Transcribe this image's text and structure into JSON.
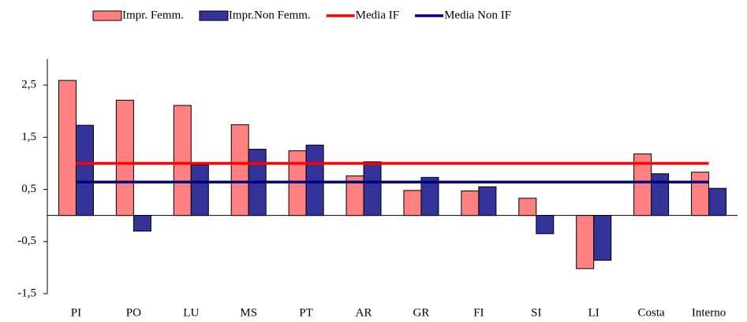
{
  "chart_data": {
    "type": "bar",
    "categories": [
      "PI",
      "PO",
      "LU",
      "MS",
      "PT",
      "AR",
      "GR",
      "FI",
      "SI",
      "LI",
      "Costa",
      "Interno"
    ],
    "series": [
      {
        "name": "Impr. Femm.",
        "color": "#ff8080",
        "values": [
          2.59,
          2.21,
          2.11,
          1.74,
          1.24,
          0.76,
          0.48,
          0.47,
          0.33,
          -1.02,
          1.18,
          0.83
        ]
      },
      {
        "name": "Impr.Non Femm.",
        "color": "#333399",
        "values": [
          1.73,
          -0.3,
          0.97,
          1.27,
          1.35,
          1.03,
          0.73,
          0.55,
          -0.35,
          -0.86,
          0.8,
          0.52
        ]
      }
    ],
    "reference_lines": [
      {
        "name": "Media IF",
        "color": "#ff0000",
        "value": 1.0
      },
      {
        "name": "Media Non IF",
        "color": "#000080",
        "value": 0.64
      }
    ],
    "ylim": [
      -1.5,
      3
    ],
    "yticks": [
      {
        "value": 2.5,
        "label": "2,5"
      },
      {
        "value": 1.5,
        "label": "1,5"
      },
      {
        "value": 0.5,
        "label": "0,5"
      },
      {
        "value": -0.5,
        "label": "-0,5"
      },
      {
        "value": -1.5,
        "label": "-1,5"
      }
    ],
    "legend": "top"
  }
}
